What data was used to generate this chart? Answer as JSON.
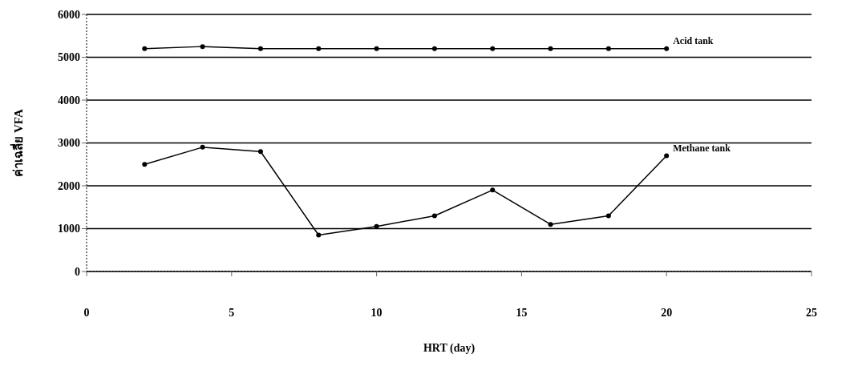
{
  "chart_data": {
    "type": "line",
    "xlabel": "HRT (day)",
    "ylabel": "ค่าเฉลี่ย VFA",
    "x": [
      2,
      4,
      6,
      8,
      10,
      12,
      14,
      16,
      18,
      20
    ],
    "series": [
      {
        "name": "Acid tank",
        "color": "#000000",
        "values": [
          5200,
          5250,
          5200,
          5200,
          5200,
          5200,
          5200,
          5200,
          5200,
          5200
        ]
      },
      {
        "name": "Methane tank",
        "color": "#000000",
        "values": [
          2500,
          2900,
          2800,
          850,
          1050,
          1300,
          1900,
          1100,
          1300,
          2700
        ]
      }
    ],
    "xlim": [
      0,
      25
    ],
    "xticks": [
      0,
      5,
      10,
      15,
      20,
      25
    ],
    "ylim": [
      0,
      6000
    ],
    "yticks": [
      0,
      1000,
      2000,
      3000,
      4000,
      5000,
      6000
    ],
    "grid": "y",
    "legend": false,
    "marker": "circle",
    "line_style": "solid"
  }
}
